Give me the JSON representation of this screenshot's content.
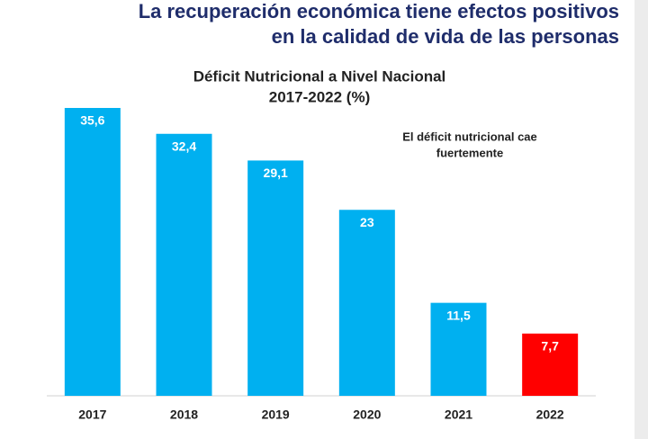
{
  "header": {
    "title_lines": [
      "La recuperación económica tiene efectos positivos",
      "en la calidad de vida de las personas"
    ]
  },
  "chart_data": {
    "type": "bar",
    "title_lines": [
      "Déficit Nutricional a Nivel Nacional",
      "2017-2022 (%)"
    ],
    "annotation_lines": [
      "El déficit nutricional cae",
      "fuertemente"
    ],
    "categories": [
      "2017",
      "2018",
      "2019",
      "2020",
      "2021",
      "2022"
    ],
    "values": [
      35.6,
      32.4,
      29.1,
      23,
      11.5,
      7.7
    ],
    "value_labels": [
      "35,6",
      "32,4",
      "29,1",
      "23",
      "11,5",
      "7,7"
    ],
    "colors": [
      "#00b0f0",
      "#00b0f0",
      "#00b0f0",
      "#00b0f0",
      "#00b0f0",
      "#ff0000"
    ]
  }
}
